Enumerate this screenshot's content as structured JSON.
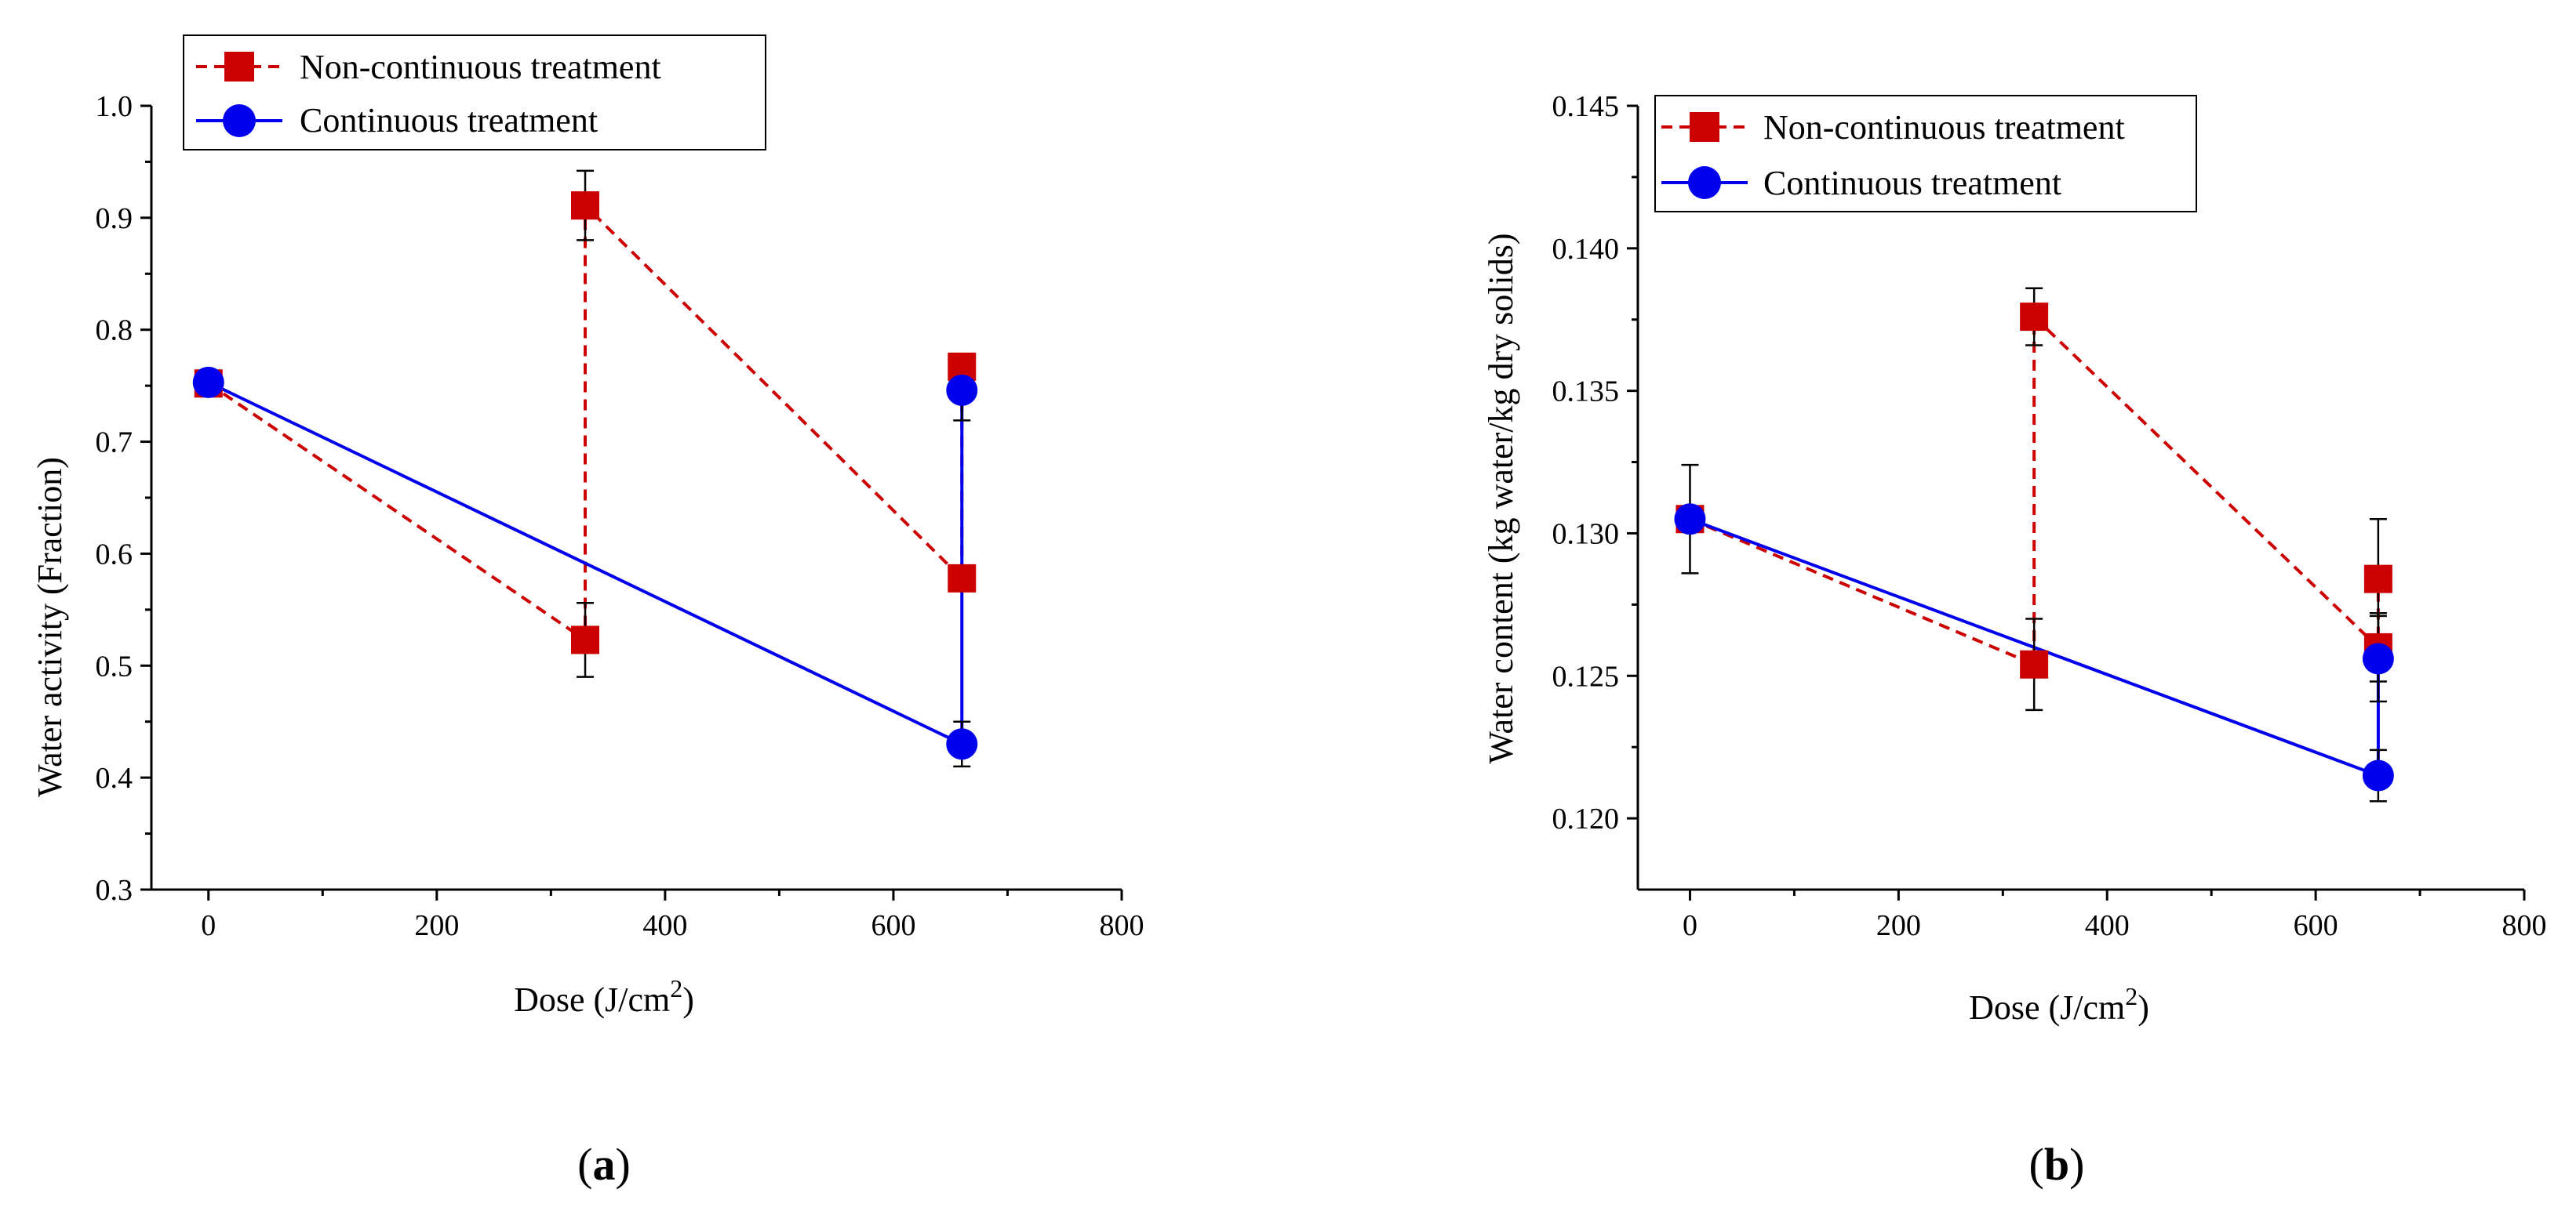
{
  "colors": {
    "non_continuous": "#cc0000",
    "continuous": "#0000ee",
    "axis": "#000000",
    "error_bar": "#000000"
  },
  "chart_data": [
    {
      "type": "line",
      "panel_label": "a",
      "xlabel": "Dose (J/cm",
      "xlabel_sup": "2",
      "xlabel_close": ")",
      "ylabel": "Water activity (Fraction)",
      "xlim": [
        -50,
        800
      ],
      "ylim": [
        0.3,
        1.0
      ],
      "xticks": [
        0,
        200,
        400,
        600,
        800
      ],
      "xtick_labels": [
        "0",
        "200",
        "400",
        "600",
        "800"
      ],
      "yticks": [
        0.3,
        0.4,
        0.5,
        0.6,
        0.7,
        0.8,
        0.9,
        1.0
      ],
      "ytick_labels": [
        "0.3",
        "0.4",
        "0.5",
        "0.6",
        "0.7",
        "0.8",
        "0.9",
        "1.0"
      ],
      "legend_position": "top-left",
      "series": [
        {
          "name": "Non-continuous treatment",
          "style": "dashed",
          "marker": "square",
          "color_key": "non_continuous",
          "points": [
            {
              "x": 0,
              "y": 0.752,
              "err": 0.01
            },
            {
              "x": 330,
              "y": 0.523,
              "err": 0.033
            },
            {
              "x": 330,
              "y": 0.911,
              "err": 0.031
            },
            {
              "x": 660,
              "y": 0.578,
              "err": 0.0
            },
            {
              "x": 660,
              "y": 0.767,
              "err": 0.01
            }
          ]
        },
        {
          "name": "Continuous treatment",
          "style": "solid",
          "marker": "circle",
          "color_key": "continuous",
          "points": [
            {
              "x": 0,
              "y": 0.753,
              "err": 0.008
            },
            {
              "x": 660,
              "y": 0.43,
              "err": 0.02
            },
            {
              "x": 660,
              "y": 0.746,
              "err": 0.027
            }
          ]
        }
      ]
    },
    {
      "type": "line",
      "panel_label": "b",
      "xlabel": "Dose (J/cm",
      "xlabel_sup": "2",
      "xlabel_close": ")",
      "ylabel": "Water content (kg water/kg dry solids)",
      "xlim": [
        -50,
        800
      ],
      "ylim": [
        0.1175,
        0.145
      ],
      "xticks": [
        0,
        200,
        400,
        600,
        800
      ],
      "xtick_labels": [
        "0",
        "200",
        "400",
        "600",
        "800"
      ],
      "yticks": [
        0.12,
        0.125,
        0.13,
        0.135,
        0.14,
        0.145
      ],
      "ytick_labels": [
        "0.120",
        "0.125",
        "0.130",
        "0.135",
        "0.140",
        "0.145"
      ],
      "legend_position": "top-left",
      "series": [
        {
          "name": "Non-continuous treatment",
          "style": "dashed",
          "marker": "square",
          "color_key": "non_continuous",
          "points": [
            {
              "x": 0,
              "y": 0.1305,
              "err": 0.0
            },
            {
              "x": 330,
              "y": 0.1254,
              "err": 0.0016
            },
            {
              "x": 330,
              "y": 0.1376,
              "err": 0.001
            },
            {
              "x": 660,
              "y": 0.126,
              "err": 0.0012
            },
            {
              "x": 660,
              "y": 0.1284,
              "err": 0.0021
            }
          ]
        },
        {
          "name": "Continuous treatment",
          "style": "solid",
          "marker": "circle",
          "color_key": "continuous",
          "points": [
            {
              "x": 0,
              "y": 0.1305,
              "err": 0.0019
            },
            {
              "x": 660,
              "y": 0.1215,
              "err": 0.0009
            },
            {
              "x": 660,
              "y": 0.1256,
              "err": 0.0015
            }
          ]
        }
      ]
    }
  ]
}
